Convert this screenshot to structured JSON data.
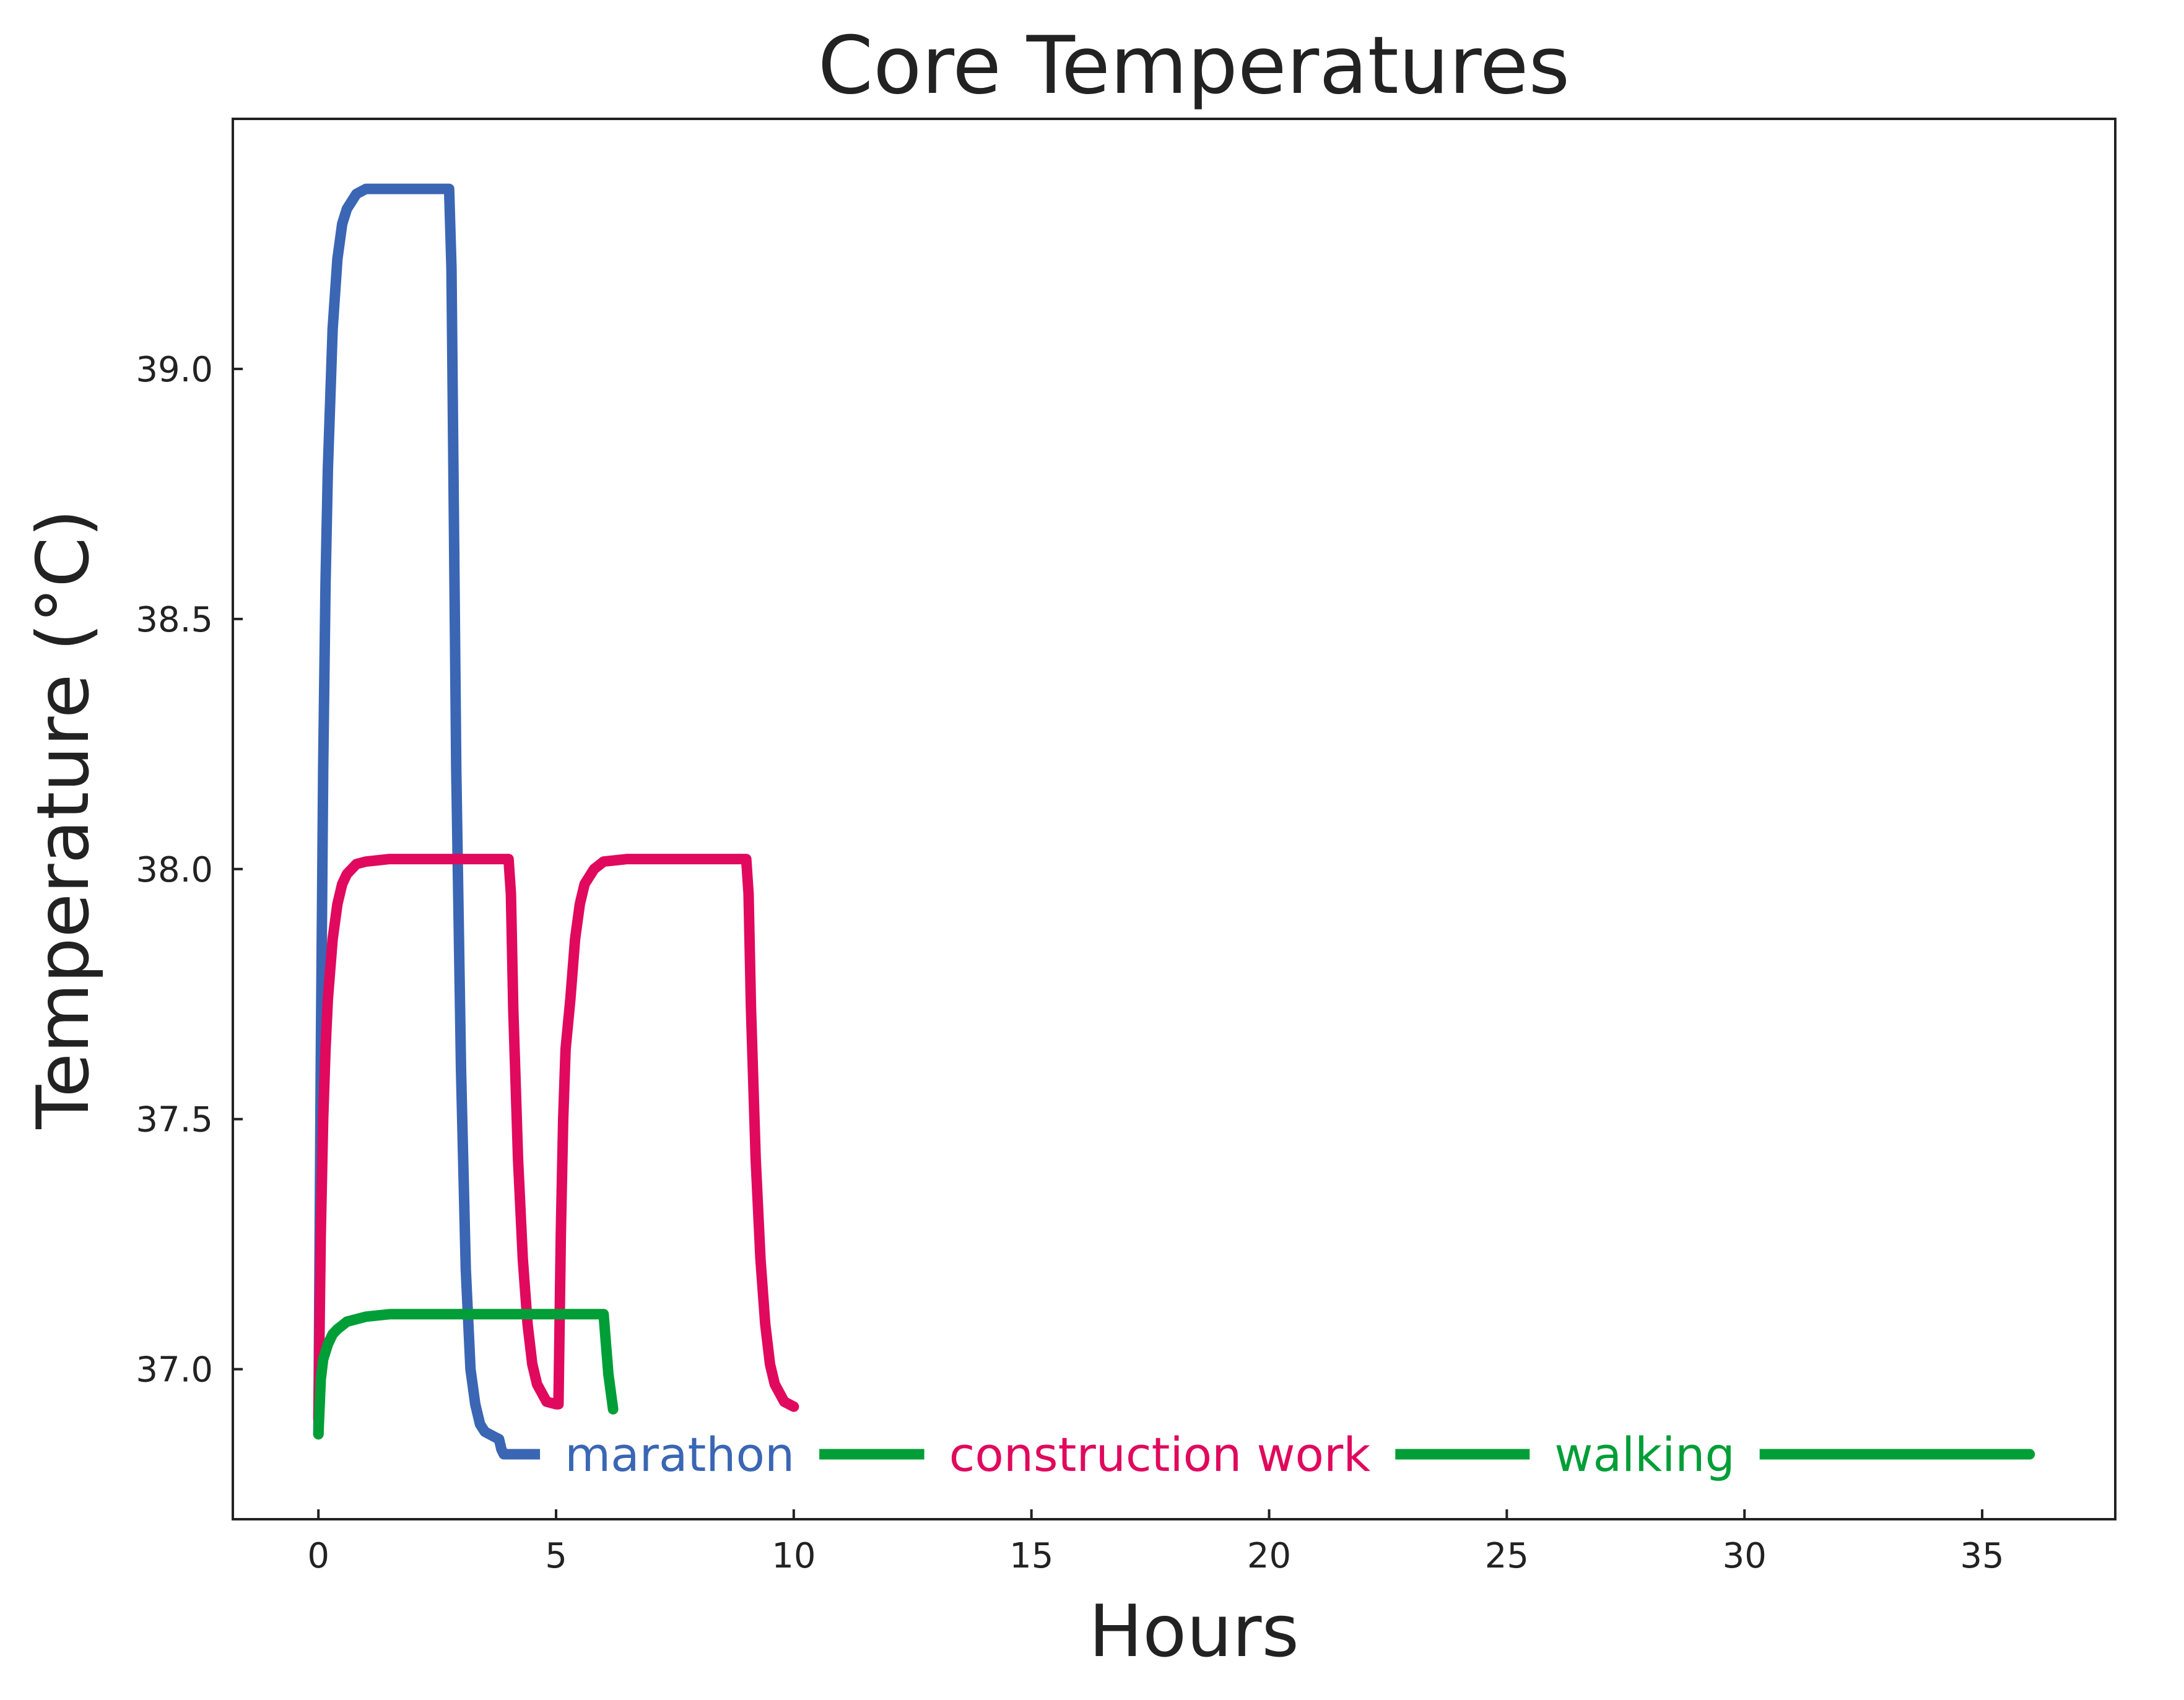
{
  "chart_data": {
    "type": "line",
    "title": "Core Temperatures",
    "xlabel": "Hours",
    "ylabel": "Temperature (°C)",
    "xlim": [
      -1.8,
      37.8
    ],
    "ylim": [
      36.7,
      39.5
    ],
    "xticks": [
      0,
      5,
      10,
      15,
      20,
      25,
      30,
      35
    ],
    "yticks": [
      37.0,
      37.5,
      38.0,
      38.5,
      39.0
    ],
    "grid": false,
    "legend": "inline labels on series lines",
    "colors": {
      "marathon": "#3a66b4",
      "construction work": "#e0095e",
      "walking": "#009e37"
    },
    "inline_labels": [
      {
        "series": "marathon",
        "text": "marathon",
        "x": 7.6,
        "y": 36.83
      },
      {
        "series": "construction work",
        "text": "construction work",
        "x": 17.7,
        "y": 36.83
      },
      {
        "series": "walking",
        "text": "walking",
        "x": 27.9,
        "y": 36.83
      }
    ],
    "series": [
      {
        "name": "marathon",
        "x": [
          0,
          0.05,
          0.1,
          0.15,
          0.2,
          0.3,
          0.4,
          0.5,
          0.6,
          0.8,
          1.0,
          1.2,
          1.5,
          2.0,
          2.5,
          2.7,
          2.75,
          2.8,
          2.85,
          2.9,
          3.0,
          3.1,
          3.2,
          3.3,
          3.4,
          3.5,
          3.7,
          3.8,
          3.85,
          3.9,
          4.0,
          4.5,
          5.0
        ],
        "values": [
          36.87,
          37.61,
          38.2,
          38.57,
          38.8,
          39.08,
          39.22,
          39.29,
          39.32,
          39.35,
          39.36,
          39.36,
          39.36,
          39.36,
          39.36,
          39.36,
          39.36,
          39.2,
          38.7,
          38.2,
          37.6,
          37.2,
          37.0,
          36.93,
          36.89,
          36.875,
          36.865,
          36.86,
          36.84,
          36.83,
          36.83,
          36.83,
          36.83
        ]
      },
      {
        "name": "construction work",
        "x": [
          0,
          0.05,
          0.1,
          0.15,
          0.2,
          0.3,
          0.4,
          0.5,
          0.6,
          0.8,
          1.0,
          1.5,
          2.0,
          2.5,
          3.0,
          3.5,
          3.95,
          4.0,
          4.05,
          4.1,
          4.2,
          4.3,
          4.4,
          4.5,
          4.6,
          4.8,
          5.0,
          5.05,
          5.1,
          5.15,
          5.2,
          5.3,
          5.4,
          5.5,
          5.6,
          5.8,
          6.0,
          6.5,
          7.0,
          7.5,
          8.0,
          8.5,
          8.95,
          9.0,
          9.05,
          9.1,
          9.2,
          9.3,
          9.4,
          9.5,
          9.6,
          9.8,
          10.0
        ],
        "values": [
          36.9,
          37.27,
          37.5,
          37.64,
          37.74,
          37.86,
          37.93,
          37.97,
          37.99,
          38.01,
          38.015,
          38.02,
          38.02,
          38.02,
          38.02,
          38.02,
          38.02,
          38.02,
          37.95,
          37.72,
          37.42,
          37.22,
          37.09,
          37.01,
          36.97,
          36.935,
          36.93,
          36.93,
          37.27,
          37.5,
          37.64,
          37.74,
          37.86,
          37.93,
          37.97,
          38.0,
          38.015,
          38.02,
          38.02,
          38.02,
          38.02,
          38.02,
          38.02,
          38.02,
          37.95,
          37.72,
          37.42,
          37.22,
          37.09,
          37.01,
          36.97,
          36.935,
          36.925
        ]
      },
      {
        "name": "walking",
        "x": [
          0,
          0.05,
          0.1,
          0.2,
          0.3,
          0.4,
          0.6,
          0.8,
          1.0,
          1.5,
          2.0,
          3.0,
          4.0,
          5.0,
          5.9,
          6.0,
          6.05,
          6.1,
          6.2
        ],
        "values": [
          36.87,
          36.98,
          37.02,
          37.05,
          37.07,
          37.08,
          37.095,
          37.1,
          37.105,
          37.11,
          37.11,
          37.11,
          37.11,
          37.11,
          37.11,
          37.11,
          37.05,
          36.99,
          36.92
        ]
      },
      {
        "name": "walking-baseline",
        "x": [
          5.0,
          36.0
        ],
        "values": [
          36.83,
          36.83
        ]
      }
    ]
  }
}
